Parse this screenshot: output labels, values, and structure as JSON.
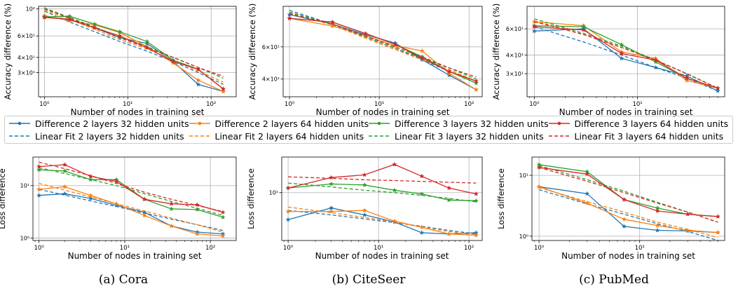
{
  "series_labels": {
    "diff_2_32": "Difference 2 layers 32 hidden units",
    "diff_2_64": "Difference 2 layers 64 hidden units",
    "diff_3_32": "Difference 3 layers 32 hidden units",
    "diff_3_64": "Difference 3 layers 64 hidden units",
    "fit_2_32": "Linear Fit 2 layers 32 hidden units",
    "fit_2_64": "Linear Fit 2 layers 64 hidden units",
    "fit_3_32": "Linear Fit 3 layers 32 hidden units",
    "fit_3_64": "Linear Fit 3 layers 64 hidden units"
  },
  "colors": {
    "2_32": "#1f77b4",
    "2_64": "#ff7f0e",
    "3_32": "#2ca02c",
    "3_64": "#d62728"
  },
  "captions": [
    "(a) Cora",
    "(b) CiteSeer",
    "(c) PubMed"
  ],
  "chart_data": [
    {
      "type": "line",
      "dataset": "Cora",
      "metric": "accuracy",
      "xlabel": "Number of nodes in training set",
      "ylabel": "Accuracy difference (%)",
      "xscale": "log",
      "yscale": "log",
      "xlim": [
        0.85,
        200
      ],
      "ylim": [
        19,
        105
      ],
      "xticks": [
        {
          "v": 1,
          "l": "10⁰"
        },
        {
          "v": 10,
          "l": "10¹"
        },
        {
          "v": 100,
          "l": "10²"
        }
      ],
      "yticks": [
        {
          "v": 100,
          "l": "10²"
        },
        {
          "v": 60,
          "l": "6×10¹"
        },
        {
          "v": 40,
          "l": "4×10¹"
        },
        {
          "v": 30,
          "l": "3×10¹"
        }
      ],
      "grid": true,
      "series": [
        {
          "key": "2_32",
          "x": [
            1,
            2,
            4,
            8,
            17,
            35,
            70,
            140
          ],
          "diff": [
            86,
            82,
            70,
            58,
            52,
            37,
            24,
            21
          ],
          "fit": [
            96,
            78,
            65,
            54,
            45,
            37,
            30,
            24
          ]
        },
        {
          "key": "2_64",
          "x": [
            1,
            2,
            4,
            8,
            17,
            35,
            70,
            140
          ],
          "diff": [
            88,
            80,
            74,
            64,
            49,
            36,
            26,
            21
          ],
          "fit": [
            98,
            82,
            68,
            56,
            47,
            38,
            31,
            25
          ]
        },
        {
          "key": "3_32",
          "x": [
            1,
            2,
            4,
            8,
            17,
            35,
            70,
            140
          ],
          "diff": [
            86,
            87,
            75,
            65,
            54,
            38,
            32,
            22
          ],
          "fit": [
            102,
            85,
            71,
            59,
            49,
            40,
            33,
            27
          ]
        },
        {
          "key": "3_64",
          "x": [
            1,
            2,
            4,
            8,
            17,
            35,
            70,
            140
          ],
          "diff": [
            85,
            82,
            70,
            60,
            48,
            37,
            32,
            22
          ],
          "fit": [
            100,
            84,
            70,
            58,
            48,
            40,
            33,
            28
          ]
        }
      ]
    },
    {
      "type": "line",
      "dataset": "CiteSeer",
      "metric": "accuracy",
      "xlabel": "Number of nodes in training set",
      "ylabel": "Accuracy difference (%)",
      "xscale": "log",
      "yscale": "log",
      "xlim": [
        0.85,
        140
      ],
      "ylim": [
        32,
        100
      ],
      "xticks": [
        {
          "v": 1,
          "l": "10⁰"
        },
        {
          "v": 10,
          "l": "10¹"
        },
        {
          "v": 100,
          "l": "10²"
        }
      ],
      "yticks": [
        {
          "v": 60,
          "l": "6×10¹"
        },
        {
          "v": 40,
          "l": "4×10¹"
        }
      ],
      "grid": true,
      "series": [
        {
          "key": "2_32",
          "x": [
            1,
            3,
            7,
            15,
            30,
            60,
            120
          ],
          "diff": [
            90,
            80,
            70,
            63,
            51,
            42,
            35
          ],
          "fit": [
            95,
            80,
            68,
            59,
            51,
            44,
            38
          ]
        },
        {
          "key": "2_64",
          "x": [
            1,
            3,
            7,
            15,
            30,
            60,
            120
          ],
          "diff": [
            86,
            78,
            69,
            61,
            57,
            43,
            35
          ],
          "fit": [
            92,
            79,
            67,
            58,
            51,
            45,
            39
          ]
        },
        {
          "key": "3_32",
          "x": [
            1,
            3,
            7,
            15,
            30,
            60,
            120
          ],
          "diff": [
            86,
            82,
            71,
            62,
            53,
            44,
            38
          ],
          "fit": [
            93,
            80,
            68,
            59,
            52,
            46,
            40
          ]
        },
        {
          "key": "3_64",
          "x": [
            1,
            3,
            7,
            15,
            30,
            60,
            120
          ],
          "diff": [
            86,
            82,
            71,
            62,
            52,
            44,
            39
          ],
          "fit": [
            91,
            80,
            69,
            60,
            53,
            46,
            41
          ]
        }
      ]
    },
    {
      "type": "line",
      "dataset": "PubMed",
      "metric": "accuracy",
      "xlabel": "Number of nodes in training set",
      "ylabel": "Accuracy difference (%)",
      "xscale": "log",
      "yscale": "log",
      "xlim": [
        0.85,
        70
      ],
      "ylim": [
        21,
        85
      ],
      "xticks": [
        {
          "v": 1,
          "l": "10⁰"
        },
        {
          "v": 10,
          "l": "10¹"
        }
      ],
      "yticks": [
        {
          "v": 60,
          "l": "6×10¹"
        },
        {
          "v": 40,
          "l": "4×10¹"
        },
        {
          "v": 30,
          "l": "3×10¹"
        }
      ],
      "grid": true,
      "series": [
        {
          "key": "2_32",
          "x": [
            1,
            3,
            7,
            15,
            30,
            60
          ],
          "diff": [
            58,
            60,
            38,
            33,
            29,
            23
          ],
          "fit": [
            62,
            49,
            40,
            33,
            28,
            23
          ]
        },
        {
          "key": "2_64",
          "x": [
            1,
            3,
            7,
            15,
            30,
            60
          ],
          "diff": [
            67,
            63,
            42,
            38,
            27,
            24
          ],
          "fit": [
            68,
            55,
            45,
            37,
            30,
            24
          ]
        },
        {
          "key": "3_32",
          "x": [
            1,
            3,
            7,
            15,
            30,
            60
          ],
          "diff": [
            63,
            62,
            47,
            36,
            28,
            24
          ],
          "fit": [
            70,
            56,
            46,
            37,
            30,
            24
          ]
        },
        {
          "key": "3_64",
          "x": [
            1,
            3,
            7,
            15,
            30,
            60
          ],
          "diff": [
            62,
            59,
            41,
            37,
            28,
            24
          ],
          "fit": [
            67,
            55,
            45,
            37,
            30,
            24
          ]
        }
      ]
    },
    {
      "type": "line",
      "dataset": "Cora",
      "metric": "loss",
      "xlabel": "Number of nodes in training set",
      "ylabel": "Loss difference",
      "xscale": "log",
      "yscale": "log",
      "xlim": [
        0.85,
        200
      ],
      "ylim": [
        0.9,
        35
      ],
      "xticks": [
        {
          "v": 1,
          "l": "10⁰"
        },
        {
          "v": 10,
          "l": "10¹"
        },
        {
          "v": 100,
          "l": "10²"
        }
      ],
      "yticks": [
        {
          "v": 1,
          "l": "10⁰"
        },
        {
          "v": 10,
          "l": "10¹"
        }
      ],
      "grid": true,
      "series": [
        {
          "key": "2_32",
          "x": [
            1,
            2,
            4,
            8,
            17,
            35,
            70,
            140
          ],
          "diff": [
            6.5,
            7,
            5.7,
            4.2,
            3.1,
            1.7,
            1.3,
            1.2
          ],
          "fit": [
            8.5,
            6.6,
            5.1,
            4.0,
            3.0,
            2.3,
            1.8,
            1.4
          ]
        },
        {
          "key": "2_64",
          "x": [
            1,
            2,
            4,
            8,
            17,
            35,
            70,
            140
          ],
          "diff": [
            8.5,
            9.5,
            6.5,
            4.5,
            2.7,
            1.7,
            1.2,
            1.1
          ],
          "fit": [
            11,
            8.2,
            6.1,
            4.5,
            3.3,
            2.4,
            1.8,
            1.3
          ]
        },
        {
          "key": "3_32",
          "x": [
            1,
            2,
            4,
            8,
            17,
            35,
            70,
            140
          ],
          "diff": [
            20,
            19,
            13,
            13,
            5.5,
            3.6,
            3.5,
            2.5
          ],
          "fit": [
            22,
            17,
            13,
            10,
            7,
            5,
            3.7,
            2.7
          ]
        },
        {
          "key": "3_64",
          "x": [
            1,
            2,
            4,
            8,
            17,
            35,
            70,
            140
          ],
          "diff": [
            23,
            25,
            15,
            12,
            5.5,
            4.5,
            4.3,
            3.1
          ],
          "fit": [
            28,
            21,
            15.5,
            11,
            7.5,
            5.5,
            4.2,
            3.2
          ]
        }
      ]
    },
    {
      "type": "line",
      "dataset": "CiteSeer",
      "metric": "loss",
      "xlabel": "Number of nodes in training set",
      "ylabel": "Loss difference",
      "xscale": "log",
      "yscale": "log",
      "xlim": [
        0.85,
        140
      ],
      "ylim": [
        1.55,
        40
      ],
      "xticks": [
        {
          "v": 1,
          "l": "10⁰"
        },
        {
          "v": 10,
          "l": "10¹"
        },
        {
          "v": 100,
          "l": "10²"
        }
      ],
      "yticks": [
        {
          "v": 10,
          "l": "10¹"
        }
      ],
      "grid": true,
      "series": [
        {
          "key": "2_32",
          "x": [
            1,
            3,
            7,
            15,
            30,
            60,
            120
          ],
          "diff": [
            3.5,
            5.5,
            4.2,
            3.2,
            2.1,
            2.0,
            2.1
          ],
          "fit": [
            5.0,
            4.2,
            3.6,
            3.1,
            2.7,
            2.3,
            2.0
          ]
        },
        {
          "key": "2_64",
          "x": [
            1,
            3,
            7,
            15,
            30,
            60,
            120
          ],
          "diff": [
            4.8,
            4.8,
            5.0,
            3.3,
            2.6,
            2.0,
            1.9
          ],
          "fit": [
            5.7,
            4.6,
            3.8,
            3.2,
            2.6,
            2.2,
            1.9
          ]
        },
        {
          "key": "3_32",
          "x": [
            1,
            3,
            7,
            15,
            30,
            60,
            120
          ],
          "diff": [
            12,
            14,
            13.5,
            11,
            9.5,
            7.5,
            7.3
          ],
          "fit": [
            14.5,
            12.5,
            11,
            10,
            9,
            8,
            7
          ]
        },
        {
          "key": "3_64",
          "x": [
            1,
            3,
            7,
            15,
            30,
            60,
            120
          ],
          "diff": [
            12,
            18,
            20,
            30,
            19,
            12,
            9.5
          ],
          "fit": [
            18.5,
            17.5,
            16.5,
            16,
            15.5,
            15,
            14.5
          ]
        }
      ]
    },
    {
      "type": "line",
      "dataset": "PubMed",
      "metric": "loss",
      "xlabel": "Number of nodes in training set",
      "ylabel": "Loss difference",
      "xscale": "log",
      "yscale": "log",
      "xlim": [
        0.85,
        70
      ],
      "ylim": [
        0.85,
        20
      ],
      "xticks": [
        {
          "v": 1,
          "l": "10⁰"
        },
        {
          "v": 10,
          "l": "10¹"
        }
      ],
      "yticks": [
        {
          "v": 1,
          "l": "10⁰"
        },
        {
          "v": 10,
          "l": "10¹"
        }
      ],
      "grid": true,
      "series": [
        {
          "key": "2_32",
          "x": [
            1,
            3,
            7,
            15,
            30,
            60
          ],
          "diff": [
            6.5,
            5.0,
            1.45,
            1.25,
            1.22,
            1.15
          ],
          "fit": [
            5.8,
            3.4,
            2.3,
            1.6,
            1.2,
            0.85
          ]
        },
        {
          "key": "2_64",
          "x": [
            1,
            3,
            7,
            15,
            30,
            60
          ],
          "diff": [
            6.5,
            3.5,
            1.9,
            1.5,
            1.25,
            1.15
          ],
          "fit": [
            6.3,
            3.7,
            2.5,
            1.7,
            1.3,
            0.95
          ]
        },
        {
          "key": "3_32",
          "x": [
            1,
            3,
            7,
            15,
            30,
            60
          ],
          "diff": [
            15,
            11.5,
            4.0,
            2.9,
            2.3,
            2.1
          ],
          "fit": [
            14.5,
            8.5,
            5.5,
            3.6,
            2.5,
            1.7
          ]
        },
        {
          "key": "3_64",
          "x": [
            1,
            3,
            7,
            15,
            30,
            60
          ],
          "diff": [
            13.5,
            10.5,
            4.0,
            2.6,
            2.3,
            2.1
          ],
          "fit": [
            13.5,
            8.0,
            5.2,
            3.5,
            2.5,
            1.7
          ]
        }
      ]
    }
  ]
}
